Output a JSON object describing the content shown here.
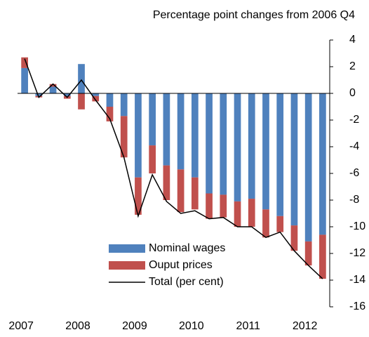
{
  "chart_data": {
    "type": "bar",
    "title": "Percentage point changes from 2006 Q4",
    "categories": [
      "2007",
      null,
      null,
      null,
      "2008",
      null,
      null,
      null,
      "2009",
      null,
      null,
      null,
      "2010",
      null,
      null,
      null,
      "2011",
      null,
      null,
      null,
      "2012",
      null
    ],
    "series": [
      {
        "name": "Nominal wages",
        "color": "#4f81bd",
        "type": "bar",
        "values": [
          1.9,
          -0.2,
          0.5,
          -0.2,
          2.2,
          -0.2,
          -1.0,
          -1.7,
          -6.3,
          -3.9,
          -5.4,
          -5.7,
          -6.3,
          -7.5,
          -7.6,
          -8.1,
          -7.9,
          -8.7,
          -9.2,
          -9.9,
          -11.1,
          -10.6
        ]
      },
      {
        "name": "Ouput prices",
        "color": "#c0504d",
        "type": "bar",
        "values": [
          0.8,
          -0.1,
          0.2,
          -0.2,
          -1.2,
          -0.4,
          -1.1,
          -3.1,
          -2.8,
          -2.1,
          -2.6,
          -3.2,
          -2.4,
          -1.9,
          -1.7,
          -1.9,
          -2.1,
          -2.1,
          -1.2,
          -1.9,
          -1.8,
          -3.3
        ]
      },
      {
        "name": "Total (per cent)",
        "color": "#000000",
        "type": "line",
        "values": [
          2.6,
          -0.3,
          0.7,
          -0.3,
          1.0,
          -0.5,
          -1.9,
          -4.8,
          -9.2,
          -6.1,
          -8.1,
          -9.0,
          -8.8,
          -9.4,
          -9.3,
          -10.0,
          -10.0,
          -10.8,
          -10.4,
          -11.8,
          -12.9,
          -13.9
        ]
      }
    ],
    "ylim": [
      -16,
      4
    ],
    "yticks": [
      -16,
      -14,
      -12,
      -10,
      -8,
      -6,
      -4,
      -2,
      0,
      2,
      4
    ]
  }
}
